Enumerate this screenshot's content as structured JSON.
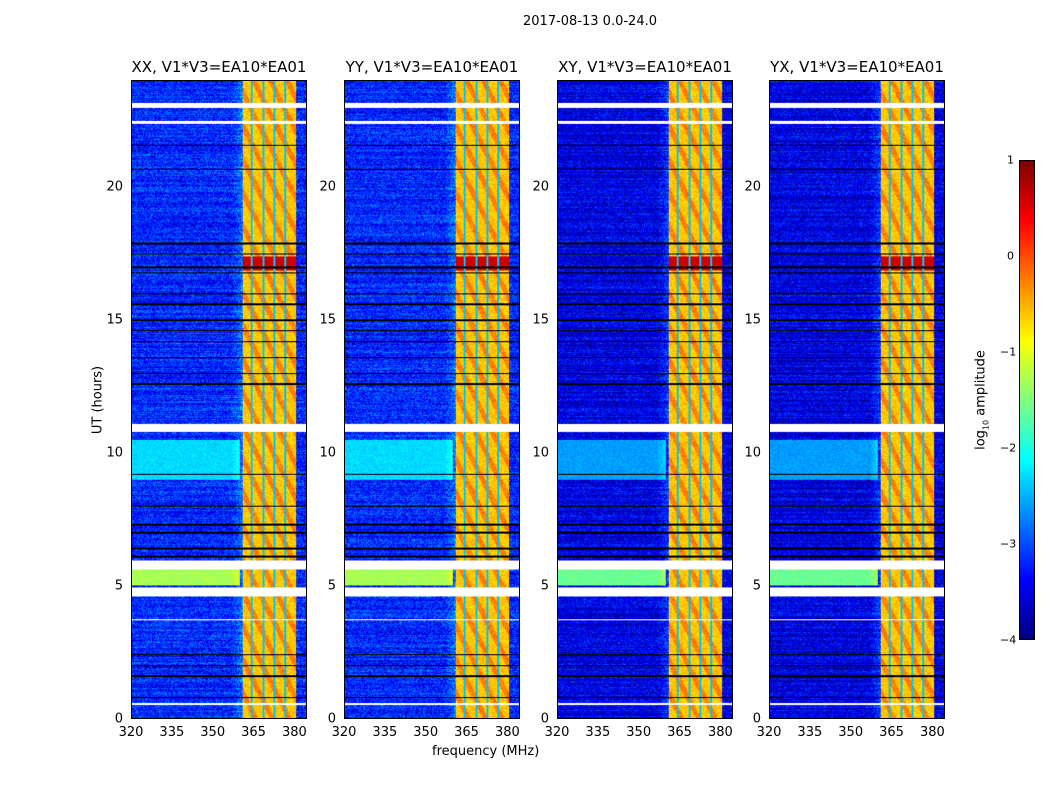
{
  "figure": {
    "suptitle": "2017-08-13 0.0-24.0"
  },
  "chart_data": {
    "type": "heatmap",
    "panels": [
      {
        "title": "XX, V1*V3=EA10*EA01",
        "level_shift": 0
      },
      {
        "title": "YY, V1*V3=EA10*EA01",
        "level_shift": 0
      },
      {
        "title": "XY, V1*V3=EA10*EA01",
        "level_shift": -0.3
      },
      {
        "title": "YX, V1*V3=EA10*EA01",
        "level_shift": -0.3
      }
    ],
    "xlabel": "frequency (MHz)",
    "ylabel": "UT (hours)",
    "xlim": [
      320,
      385
    ],
    "ylim": [
      0,
      24
    ],
    "xticks": [
      "320",
      "335",
      "350",
      "365",
      "380"
    ],
    "yticks": [
      "0",
      "5",
      "10",
      "15",
      "20"
    ],
    "colorbar": {
      "label": "log",
      "label_sub": "10",
      "label_rest": " amplitude",
      "range": [
        -4,
        1
      ],
      "ticks": [
        "1",
        "0",
        "−1",
        "−2",
        "−3",
        "−4"
      ],
      "colormap": "jet"
    },
    "background_level": -3.2,
    "rfi_band_mhz": [
      361,
      381
    ],
    "rfi_band_level": -0.6,
    "bright_time_ranges": [
      [
        5.0,
        5.6,
        -1.3
      ],
      [
        9.0,
        10.5,
        -2.3
      ]
    ],
    "flagged_time_ranges": [
      [
        23.0,
        23.2
      ],
      [
        22.4,
        22.5
      ],
      [
        10.8,
        11.1
      ],
      [
        5.6,
        5.95
      ],
      [
        4.6,
        4.95
      ],
      [
        3.7,
        3.75
      ],
      [
        0.5,
        0.6
      ]
    ],
    "flagged_lines_hours": [
      21.6,
      20.7,
      17.9,
      17.5,
      17.0,
      16.8,
      16.0,
      15.6,
      15.0,
      14.6,
      14.2,
      13.6,
      13.0,
      12.6,
      9.2,
      8.0,
      7.3,
      7.0,
      6.4,
      6.1,
      2.4,
      2.0,
      1.6,
      0.8
    ]
  }
}
